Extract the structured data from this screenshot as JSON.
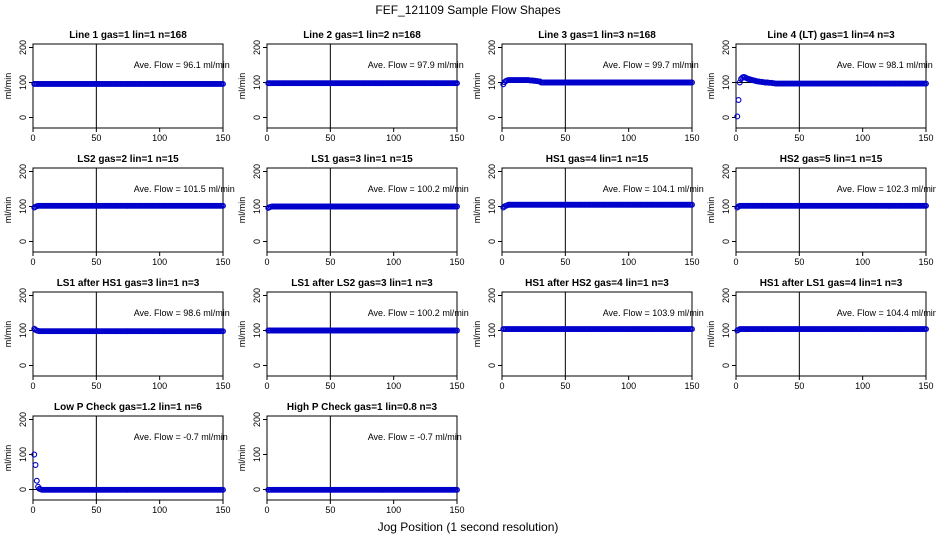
{
  "figure": {
    "title": "FEF_121109  Sample Flow Shapes",
    "xlabel": "Jog Position (1 second resolution)"
  },
  "chart_data": [
    {
      "type": "scatter",
      "title": "Line 1 gas=1 lin=1 n=168",
      "ylabel": "ml/min",
      "xlim": [
        0,
        150
      ],
      "ylim": [
        -30,
        210
      ],
      "xticks": [
        0,
        50,
        100,
        150
      ],
      "yticks": [
        0,
        100,
        200
      ],
      "vline": 50,
      "hline": 100,
      "annotation": "Ave. Flow =  96.1  ml/min",
      "point_color": "#0000cc",
      "series": [
        {
          "x": [
            1,
            2,
            3,
            4,
            5,
            6,
            7,
            8,
            9,
            10,
            11,
            12,
            13,
            14,
            15,
            16,
            17,
            18,
            19,
            20,
            21,
            22,
            23,
            24,
            25,
            26,
            27,
            28,
            29,
            30,
            31,
            32,
            33,
            34,
            35,
            36,
            37,
            38,
            39,
            40,
            41,
            42,
            43,
            44,
            45,
            46,
            47,
            48,
            49,
            50,
            51,
            52,
            53,
            54,
            55,
            56,
            57,
            58,
            59,
            60,
            61,
            62,
            63,
            64,
            65,
            66,
            67,
            68,
            69,
            70,
            71,
            72,
            73,
            74,
            75,
            76,
            77,
            78,
            79,
            80,
            81,
            82,
            83,
            84,
            85,
            86,
            87,
            88,
            89,
            90,
            91,
            92,
            93,
            94,
            95,
            96,
            97,
            98,
            99,
            100,
            101,
            102,
            103,
            104,
            105,
            106,
            107,
            108,
            109,
            110,
            111,
            112,
            113,
            114,
            115,
            116,
            117,
            118,
            119,
            120,
            121,
            122,
            123,
            124,
            125,
            126,
            127,
            128,
            129,
            130,
            131,
            132,
            133,
            134,
            135,
            136,
            137,
            138,
            139,
            140,
            141,
            142,
            143,
            144,
            145,
            146,
            147,
            148,
            149,
            150
          ],
          "y_const": 96
        }
      ]
    },
    {
      "type": "scatter",
      "title": "Line 2 gas=1 lin=2 n=168",
      "ylabel": "ml/min",
      "xlim": [
        0,
        150
      ],
      "ylim": [
        -30,
        210
      ],
      "xticks": [
        0,
        50,
        100,
        150
      ],
      "yticks": [
        0,
        100,
        200
      ],
      "vline": 50,
      "hline": 100,
      "annotation": "Ave. Flow =  97.9  ml/min",
      "point_color": "#0000cc",
      "series": [
        {
          "x_range": [
            1,
            150
          ],
          "y_const": 98
        }
      ]
    },
    {
      "type": "scatter",
      "title": "Line 3 gas=1 lin=3 n=168",
      "ylabel": "ml/min",
      "xlim": [
        0,
        150
      ],
      "ylim": [
        -30,
        210
      ],
      "xticks": [
        0,
        50,
        100,
        150
      ],
      "yticks": [
        0,
        100,
        200
      ],
      "vline": 50,
      "hline": 100,
      "annotation": "Ave. Flow =  99.7  ml/min",
      "point_color": "#0000cc",
      "series": [
        {
          "x_range": [
            1,
            150
          ],
          "y_const": 100,
          "y_head": [
            95,
            101,
            104,
            106,
            107,
            107,
            107,
            107,
            107,
            107,
            107,
            107,
            107,
            107,
            107,
            107,
            107,
            107,
            107,
            107,
            107,
            106,
            106,
            106,
            105,
            105,
            104,
            104,
            103,
            103
          ]
        }
      ]
    },
    {
      "type": "scatter",
      "title": "Line 4 (LT) gas=1 lin=4 n=3",
      "ylabel": "ml/min",
      "xlim": [
        0,
        150
      ],
      "ylim": [
        -30,
        210
      ],
      "xticks": [
        0,
        50,
        100,
        150
      ],
      "yticks": [
        0,
        100,
        200
      ],
      "vline": 50,
      "hline": 100,
      "annotation": "Ave. Flow =  98.1  ml/min",
      "point_color": "#0000cc",
      "series": [
        {
          "x_range": [
            1,
            150
          ],
          "y_const": 97,
          "y_head": [
            3,
            50,
            100,
            110,
            114,
            116,
            115,
            113,
            111,
            110,
            109,
            108,
            107,
            106,
            105,
            104,
            103,
            103,
            102,
            102,
            101,
            101,
            100,
            100,
            100,
            99,
            99,
            99,
            98,
            98
          ]
        }
      ]
    },
    {
      "type": "scatter",
      "title": "LS2 gas=2 lin=1 n=15",
      "ylabel": "ml/min",
      "xlim": [
        0,
        150
      ],
      "ylim": [
        -30,
        210
      ],
      "xticks": [
        0,
        50,
        100,
        150
      ],
      "yticks": [
        0,
        100,
        200
      ],
      "vline": 50,
      "hline": 100,
      "annotation": "Ave. Flow =  101.5  ml/min",
      "point_color": "#0000cc",
      "series": [
        {
          "x_range": [
            1,
            150
          ],
          "y_const": 102,
          "y_head": [
            97,
            99,
            101
          ]
        }
      ]
    },
    {
      "type": "scatter",
      "title": "LS1 gas=3 lin=1 n=15",
      "ylabel": "ml/min",
      "xlim": [
        0,
        150
      ],
      "ylim": [
        -30,
        210
      ],
      "xticks": [
        0,
        50,
        100,
        150
      ],
      "yticks": [
        0,
        100,
        200
      ],
      "vline": 50,
      "hline": 100,
      "annotation": "Ave. Flow =  100.2  ml/min",
      "point_color": "#0000cc",
      "series": [
        {
          "x_range": [
            1,
            150
          ],
          "y_const": 100,
          "y_head": [
            96,
            98,
            99
          ]
        }
      ]
    },
    {
      "type": "scatter",
      "title": "HS1 gas=4 lin=1 n=15",
      "ylabel": "ml/min",
      "xlim": [
        0,
        150
      ],
      "ylim": [
        -30,
        210
      ],
      "xticks": [
        0,
        50,
        100,
        150
      ],
      "yticks": [
        0,
        100,
        200
      ],
      "vline": 50,
      "hline": 100,
      "annotation": "Ave. Flow =  104.1  ml/min",
      "point_color": "#0000cc",
      "series": [
        {
          "x_range": [
            1,
            150
          ],
          "y_const": 105,
          "y_head": [
            97,
            100,
            102,
            103
          ]
        }
      ]
    },
    {
      "type": "scatter",
      "title": "HS2 gas=5 lin=1 n=15",
      "ylabel": "ml/min",
      "xlim": [
        0,
        150
      ],
      "ylim": [
        -30,
        210
      ],
      "xticks": [
        0,
        50,
        100,
        150
      ],
      "yticks": [
        0,
        100,
        200
      ],
      "vline": 50,
      "hline": 100,
      "annotation": "Ave. Flow =  102.3  ml/min",
      "point_color": "#0000cc",
      "series": [
        {
          "x_range": [
            1,
            150
          ],
          "y_const": 102,
          "y_head": [
            97,
            100
          ]
        }
      ]
    },
    {
      "type": "scatter",
      "title": "LS1 after HS1 gas=3 lin=1 n=3",
      "ylabel": "ml/min",
      "xlim": [
        0,
        150
      ],
      "ylim": [
        -30,
        210
      ],
      "xticks": [
        0,
        50,
        100,
        150
      ],
      "yticks": [
        0,
        100,
        200
      ],
      "vline": 50,
      "hline": 100,
      "annotation": "Ave. Flow =  98.6  ml/min",
      "point_color": "#0000cc",
      "series": [
        {
          "x_range": [
            1,
            150
          ],
          "y_const": 98,
          "y_head": [
            105,
            102,
            100,
            99
          ]
        }
      ]
    },
    {
      "type": "scatter",
      "title": "LS1 after LS2 gas=3 lin=1 n=3",
      "ylabel": "ml/min",
      "xlim": [
        0,
        150
      ],
      "ylim": [
        -30,
        210
      ],
      "xticks": [
        0,
        50,
        100,
        150
      ],
      "yticks": [
        0,
        100,
        200
      ],
      "vline": 50,
      "hline": 100,
      "annotation": "Ave. Flow =  100.2  ml/min",
      "point_color": "#0000cc",
      "series": [
        {
          "x_range": [
            1,
            150
          ],
          "y_const": 100
        }
      ]
    },
    {
      "type": "scatter",
      "title": "HS1 after HS2 gas=4 lin=1 n=3",
      "ylabel": "ml/min",
      "xlim": [
        0,
        150
      ],
      "ylim": [
        -30,
        210
      ],
      "xticks": [
        0,
        50,
        100,
        150
      ],
      "yticks": [
        0,
        100,
        200
      ],
      "vline": 50,
      "hline": 100,
      "annotation": "Ave. Flow =  103.9  ml/min",
      "point_color": "#0000cc",
      "series": [
        {
          "x_range": [
            1,
            150
          ],
          "y_const": 104
        }
      ]
    },
    {
      "type": "scatter",
      "title": "HS1 after LS1 gas=4 lin=1 n=3",
      "ylabel": "ml/min",
      "xlim": [
        0,
        150
      ],
      "ylim": [
        -30,
        210
      ],
      "xticks": [
        0,
        50,
        100,
        150
      ],
      "yticks": [
        0,
        100,
        200
      ],
      "vline": 50,
      "hline": 100,
      "annotation": "Ave. Flow =  104.4  ml/min",
      "point_color": "#0000cc",
      "series": [
        {
          "x_range": [
            1,
            150
          ],
          "y_const": 104,
          "y_head": [
            100,
            102
          ]
        }
      ]
    },
    {
      "type": "scatter",
      "title": "Low P Check gas=1.2 lin=1 n=6",
      "ylabel": "ml/min",
      "xlim": [
        0,
        150
      ],
      "ylim": [
        -30,
        210
      ],
      "xticks": [
        0,
        50,
        100,
        150
      ],
      "yticks": [
        0,
        100,
        200
      ],
      "vline": 50,
      "hline": 0,
      "annotation": "Ave. Flow =  -0.7  ml/min",
      "point_color": "#0000cc",
      "series": [
        {
          "x_range": [
            1,
            150
          ],
          "y_const": -1,
          "y_head": [
            100,
            70,
            25,
            8,
            2,
            1
          ]
        }
      ]
    },
    {
      "type": "scatter",
      "title": "High P Check gas=1 lin=0.8 n=3",
      "ylabel": "ml/min",
      "xlim": [
        0,
        150
      ],
      "ylim": [
        -30,
        210
      ],
      "xticks": [
        0,
        50,
        100,
        150
      ],
      "yticks": [
        0,
        100,
        200
      ],
      "vline": 50,
      "hline": 0,
      "annotation": "Ave. Flow =  -0.7  ml/min",
      "point_color": "#0000cc",
      "series": [
        {
          "x_range": [
            1,
            150
          ],
          "y_const": -1
        }
      ]
    }
  ]
}
